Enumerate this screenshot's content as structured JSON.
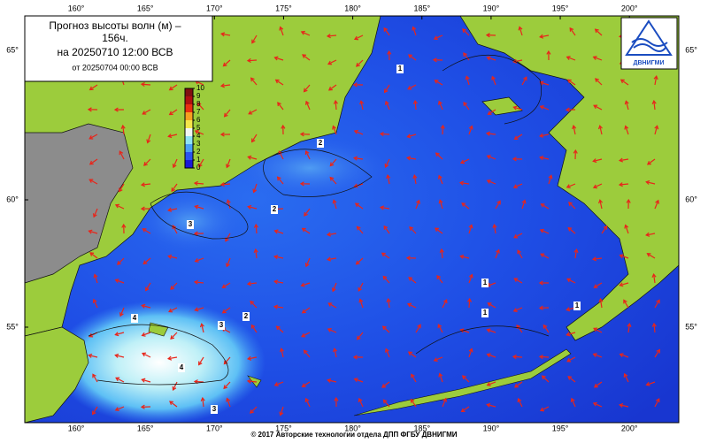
{
  "map": {
    "title": [
      "Прогноз высоты волн (м) –",
      "156ч.",
      "на 20250710 12:00 ВСВ",
      "от 20250704 00:00 ВСВ"
    ],
    "logo": "ДВНИГМИ",
    "footer": "© 2017 Авторские технологии отдела ДПП ФГБУ ДВНИГМИ",
    "lon_ticks": [
      {
        "value": 160,
        "label": "160°"
      },
      {
        "value": 165,
        "label": "165°"
      },
      {
        "value": 170,
        "label": "170°"
      },
      {
        "value": 175,
        "label": "175°"
      },
      {
        "value": 180,
        "label": "180°"
      },
      {
        "value": 185,
        "label": "185°"
      },
      {
        "value": 190,
        "label": "190°"
      },
      {
        "value": 195,
        "label": "195°"
      },
      {
        "value": 200,
        "label": "200°"
      }
    ],
    "lat_ticks": [
      {
        "value": 65,
        "label": "65°"
      },
      {
        "value": 60,
        "label": "60°"
      },
      {
        "value": 55,
        "label": "55°"
      }
    ],
    "colorbar": {
      "ticks": [
        0,
        1,
        2,
        3,
        4,
        5,
        6,
        7,
        8,
        9,
        10
      ],
      "colors": [
        "#1a1ad8",
        "#2a55f0",
        "#4aa0f5",
        "#8fe3f5",
        "#f2f7f5",
        "#f5e64a",
        "#f5a020",
        "#e83010",
        "#b01010",
        "#801010",
        "#601818"
      ]
    },
    "contour_labels": [
      "1",
      "1",
      "1",
      "1",
      "2",
      "2",
      "2",
      "3",
      "3",
      "3",
      "4",
      "4"
    ]
  }
}
